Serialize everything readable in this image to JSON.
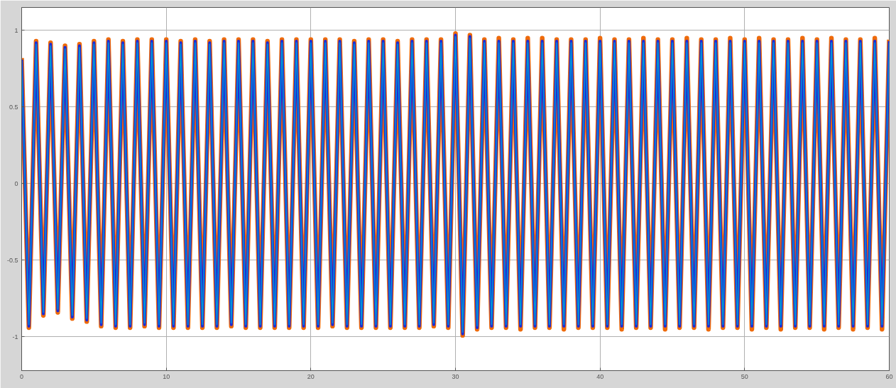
{
  "chart_data": {
    "type": "line",
    "x": [
      0,
      0.5,
      1,
      1.5,
      2,
      2.5,
      3,
      3.5,
      4,
      4.5,
      5,
      5.5,
      6,
      6.5,
      7,
      7.5,
      8,
      8.5,
      9,
      9.5,
      10,
      10.5,
      11,
      11.5,
      12,
      12.5,
      13,
      13.5,
      14,
      14.5,
      15,
      15.5,
      16,
      16.5,
      17,
      17.5,
      18,
      18.5,
      19,
      19.5,
      20,
      20.5,
      21,
      21.5,
      22,
      22.5,
      23,
      23.5,
      24,
      24.5,
      25,
      25.5,
      26,
      26.5,
      27,
      27.5,
      28,
      28.5,
      29,
      29.5,
      30,
      30.5,
      31,
      31.5,
      32,
      32.5,
      33,
      33.5,
      34,
      34.5,
      35,
      35.5,
      36,
      36.5,
      37,
      37.5,
      38,
      38.5,
      39,
      39.5,
      40,
      40.5,
      41,
      41.5,
      42,
      42.5,
      43,
      43.5,
      44,
      44.5,
      45,
      45.5,
      46,
      46.5,
      47,
      47.5,
      48,
      48.5,
      49,
      49.5,
      50,
      50.5,
      51,
      51.5,
      52,
      52.5,
      53,
      53.5,
      54,
      54.5,
      55,
      55.5,
      56,
      56.5,
      57,
      57.5,
      58,
      58.5,
      59,
      59.5,
      60
    ],
    "series": [
      {
        "color": "#ee6a0a",
        "values": [
          0.82,
          -0.94,
          0.93,
          -0.86,
          0.92,
          -0.84,
          0.9,
          -0.88,
          0.91,
          -0.9,
          0.93,
          -0.93,
          0.94,
          -0.94,
          0.93,
          -0.94,
          0.94,
          -0.93,
          0.94,
          -0.94,
          0.94,
          -0.94,
          0.93,
          -0.94,
          0.94,
          -0.94,
          0.93,
          -0.94,
          0.94,
          -0.93,
          0.94,
          -0.94,
          0.94,
          -0.94,
          0.93,
          -0.94,
          0.94,
          -0.94,
          0.94,
          -0.94,
          0.94,
          -0.94,
          0.94,
          -0.93,
          0.94,
          -0.94,
          0.93,
          -0.94,
          0.94,
          -0.94,
          0.94,
          -0.94,
          0.93,
          -0.94,
          0.94,
          -0.94,
          0.94,
          -0.93,
          0.94,
          -0.94,
          0.98,
          -0.99,
          0.97,
          -0.95,
          0.94,
          -0.94,
          0.95,
          -0.94,
          0.94,
          -0.95,
          0.95,
          -0.94,
          0.95,
          -0.94,
          0.94,
          -0.95,
          0.94,
          -0.94,
          0.94,
          -0.94,
          0.95,
          -0.94,
          0.94,
          -0.95,
          0.94,
          -0.94,
          0.95,
          -0.94,
          0.94,
          -0.95,
          0.94,
          -0.94,
          0.95,
          -0.94,
          0.94,
          -0.95,
          0.94,
          -0.94,
          0.95,
          -0.94,
          0.94,
          -0.95,
          0.95,
          -0.94,
          0.94,
          -0.95,
          0.94,
          -0.94,
          0.95,
          -0.94,
          0.94,
          -0.95,
          0.95,
          -0.94,
          0.94,
          -0.95,
          0.94,
          -0.94,
          0.95,
          -0.95,
          0.94
        ]
      },
      {
        "color": "#1f2bd6",
        "values": [
          0.81,
          -0.93,
          0.92,
          -0.85,
          0.91,
          -0.83,
          0.89,
          -0.87,
          0.9,
          -0.89,
          0.92,
          -0.92,
          0.93,
          -0.93,
          0.92,
          -0.93,
          0.93,
          -0.92,
          0.93,
          -0.93,
          0.93,
          -0.93,
          0.92,
          -0.93,
          0.93,
          -0.93,
          0.92,
          -0.93,
          0.93,
          -0.92,
          0.93,
          -0.93,
          0.93,
          -0.93,
          0.92,
          -0.93,
          0.93,
          -0.93,
          0.93,
          -0.93,
          0.93,
          -0.93,
          0.93,
          -0.92,
          0.93,
          -0.93,
          0.92,
          -0.93,
          0.93,
          -0.93,
          0.93,
          -0.93,
          0.92,
          -0.93,
          0.93,
          -0.93,
          0.93,
          -0.92,
          0.93,
          -0.93,
          0.97,
          -0.98,
          0.96,
          -0.94,
          0.93,
          -0.93,
          0.93,
          -0.93,
          0.93,
          -0.93,
          0.93,
          -0.93,
          0.93,
          -0.93,
          0.93,
          -0.93,
          0.93,
          -0.93,
          0.93,
          -0.93,
          0.93,
          -0.93,
          0.93,
          -0.93,
          0.93,
          -0.93,
          0.93,
          -0.93,
          0.93,
          -0.93,
          0.93,
          -0.93,
          0.93,
          -0.93,
          0.93,
          -0.93,
          0.93,
          -0.93,
          0.93,
          -0.93,
          0.93,
          -0.93,
          0.93,
          -0.93,
          0.93,
          -0.93,
          0.93,
          -0.93,
          0.93,
          -0.93,
          0.93,
          -0.93,
          0.93,
          -0.93,
          0.93,
          -0.93,
          0.93,
          -0.93,
          0.93,
          -0.93,
          0.93
        ]
      },
      {
        "color": "#0096d6",
        "values": [
          0.8,
          -0.92,
          0.91,
          -0.84,
          0.9,
          -0.82,
          0.88,
          -0.86,
          0.89,
          -0.88,
          0.91,
          -0.91,
          0.92,
          -0.92,
          0.91,
          -0.92,
          0.92,
          -0.91,
          0.92,
          -0.92,
          0.92,
          -0.92,
          0.91,
          -0.92,
          0.92,
          -0.92,
          0.91,
          -0.92,
          0.92,
          -0.91,
          0.92,
          -0.92,
          0.92,
          -0.92,
          0.91,
          -0.92,
          0.92,
          -0.92,
          0.92,
          -0.92,
          0.92,
          -0.92,
          0.92,
          -0.91,
          0.92,
          -0.92,
          0.91,
          -0.92,
          0.92,
          -0.92,
          0.92,
          -0.92,
          0.91,
          -0.92,
          0.92,
          -0.92,
          0.92,
          -0.91,
          0.92,
          -0.92,
          0.96,
          -0.97,
          0.95,
          -0.93,
          0.92,
          -0.92,
          0.92,
          -0.92,
          0.92,
          -0.92,
          0.92,
          -0.92,
          0.92,
          -0.92,
          0.92,
          -0.92,
          0.92,
          -0.92,
          0.92,
          -0.92,
          0.92,
          -0.92,
          0.92,
          -0.92,
          0.92,
          -0.92,
          0.92,
          -0.92,
          0.92,
          -0.92,
          0.92,
          -0.92,
          0.92,
          -0.92,
          0.92,
          -0.92,
          0.92,
          -0.92,
          0.92,
          -0.92,
          0.92,
          -0.92,
          0.92,
          -0.92,
          0.92,
          -0.92,
          0.92,
          -0.92,
          0.92,
          -0.92,
          0.92,
          -0.92,
          0.92,
          -0.92,
          0.92,
          -0.92,
          0.92,
          -0.92,
          0.92,
          -0.92,
          0.92
        ]
      }
    ],
    "xlim": [
      0,
      60
    ],
    "ylim": [
      -1.22,
      1.15
    ],
    "xticks": [
      0,
      10,
      20,
      30,
      40,
      50,
      60
    ],
    "yticks": [
      -1,
      -0.5,
      0,
      0.5,
      1
    ],
    "grid": true
  }
}
